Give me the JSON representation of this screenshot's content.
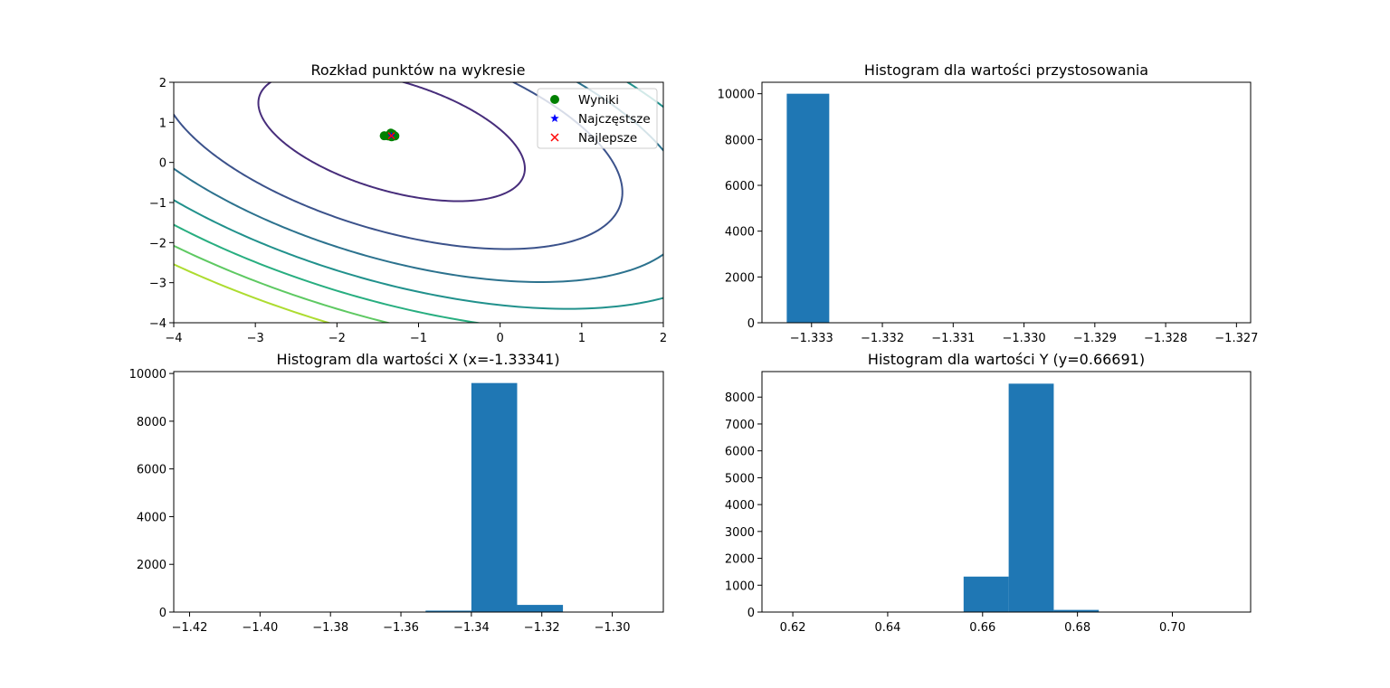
{
  "chart_data": [
    {
      "type": "contour",
      "title": "Rozkład punktów na wykresie",
      "xlim": [
        -4,
        2
      ],
      "ylim": [
        -4,
        2
      ],
      "xticks": [
        -4,
        -3,
        -2,
        -1,
        0,
        1,
        2
      ],
      "yticks": [
        -4,
        -3,
        -2,
        -1,
        0,
        1,
        2
      ],
      "xtick_labels": [
        "−4",
        "−3",
        "−2",
        "−1",
        "0",
        "1",
        "2"
      ],
      "ytick_labels": [
        "−4",
        "−3",
        "−2",
        "−1",
        "0",
        "1",
        "2"
      ],
      "contour": {
        "center": [
          -1.33,
          0.667
        ],
        "quadratic": [
          1,
          1,
          1
        ],
        "levels": [
          2,
          6,
          10,
          14,
          18,
          22,
          26
        ],
        "colors": [
          "#472d7b",
          "#3b528b",
          "#2c728e",
          "#21918c",
          "#28ae80",
          "#5ec962",
          "#addc30"
        ]
      },
      "legend": {
        "placement": "upper-right",
        "entries": [
          {
            "label": "Wyniki",
            "marker": "circle",
            "color": "#008000"
          },
          {
            "label": "Najczęstsze",
            "marker": "star",
            "color": "#0000ff"
          },
          {
            "label": "Najlepsze",
            "marker": "x",
            "color": "#ff0000"
          }
        ]
      },
      "series": [
        {
          "name": "Wyniki",
          "marker": "circle",
          "color": "#008000",
          "points": [
            [
              -1.42,
              0.665
            ],
            [
              -1.34,
              0.73
            ],
            [
              -1.31,
              0.67
            ],
            [
              -1.37,
              0.66
            ],
            [
              -1.33,
              0.64
            ],
            [
              -1.29,
              0.66
            ],
            [
              -1.35,
              0.69
            ],
            [
              -1.32,
              0.71
            ]
          ]
        },
        {
          "name": "Najczęstsze",
          "marker": "star",
          "color": "#0000ff",
          "points": [
            [
              -1.333,
              0.667
            ]
          ]
        },
        {
          "name": "Najlepsze",
          "marker": "x",
          "color": "#ff0000",
          "points": [
            [
              -1.333,
              0.667
            ]
          ]
        }
      ]
    },
    {
      "type": "bar",
      "title": "Histogram dla wartości przystosowania",
      "xlim": [
        -1.3337,
        -1.3268
      ],
      "ylim": [
        0,
        10500
      ],
      "bar_color": "#1f77b4",
      "bins": [
        {
          "x0": -1.33335,
          "x1": -1.33275,
          "count": 10000
        }
      ],
      "xticks": [
        -1.333,
        -1.332,
        -1.331,
        -1.33,
        -1.329,
        -1.328,
        -1.327
      ],
      "xtick_labels": [
        "−1.333",
        "−1.332",
        "−1.331",
        "−1.330",
        "−1.329",
        "−1.328",
        "−1.327"
      ],
      "yticks": [
        0,
        2000,
        4000,
        6000,
        8000,
        10000
      ],
      "ytick_labels": [
        "0",
        "2000",
        "4000",
        "6000",
        "8000",
        "10000"
      ]
    },
    {
      "type": "bar",
      "title": "Histogram dla wartości X (x=-1.33341)",
      "xlim": [
        -1.4245,
        -1.2855
      ],
      "ylim": [
        0,
        10080
      ],
      "bar_color": "#1f77b4",
      "bins": [
        {
          "x0": -1.418,
          "x1": -1.405,
          "count": 1
        },
        {
          "x0": -1.405,
          "x1": -1.392,
          "count": 1
        },
        {
          "x0": -1.392,
          "x1": -1.379,
          "count": 2
        },
        {
          "x0": -1.379,
          "x1": -1.366,
          "count": 3
        },
        {
          "x0": -1.366,
          "x1": -1.353,
          "count": 10
        },
        {
          "x0": -1.353,
          "x1": -1.34,
          "count": 60
        },
        {
          "x0": -1.34,
          "x1": -1.327,
          "count": 9600
        },
        {
          "x0": -1.327,
          "x1": -1.314,
          "count": 300
        },
        {
          "x0": -1.314,
          "x1": -1.301,
          "count": 5
        },
        {
          "x0": -1.301,
          "x1": -1.288,
          "count": 1
        }
      ],
      "xticks": [
        -1.42,
        -1.4,
        -1.38,
        -1.36,
        -1.34,
        -1.32,
        -1.3
      ],
      "xtick_labels": [
        "−1.42",
        "−1.40",
        "−1.38",
        "−1.36",
        "−1.34",
        "−1.32",
        "−1.30"
      ],
      "yticks": [
        0,
        2000,
        4000,
        6000,
        8000,
        10000
      ],
      "ytick_labels": [
        "0",
        "2000",
        "4000",
        "6000",
        "8000",
        "10000"
      ]
    },
    {
      "type": "bar",
      "title": "Histogram dla wartości Y (y=0.66691)",
      "xlim": [
        0.6135,
        0.7165
      ],
      "ylim": [
        0,
        8950
      ],
      "bar_color": "#1f77b4",
      "bins": [
        {
          "x0": 0.618,
          "x1": 0.6275,
          "count": 1
        },
        {
          "x0": 0.6275,
          "x1": 0.637,
          "count": 1
        },
        {
          "x0": 0.637,
          "x1": 0.6465,
          "count": 2
        },
        {
          "x0": 0.6465,
          "x1": 0.656,
          "count": 5
        },
        {
          "x0": 0.656,
          "x1": 0.6655,
          "count": 1320
        },
        {
          "x0": 0.6655,
          "x1": 0.675,
          "count": 8500
        },
        {
          "x0": 0.675,
          "x1": 0.6845,
          "count": 80
        },
        {
          "x0": 0.6845,
          "x1": 0.694,
          "count": 4
        },
        {
          "x0": 0.694,
          "x1": 0.7035,
          "count": 1
        },
        {
          "x0": 0.7035,
          "x1": 0.713,
          "count": 1
        }
      ],
      "xticks": [
        0.62,
        0.64,
        0.66,
        0.68,
        0.7
      ],
      "xtick_labels": [
        "0.62",
        "0.64",
        "0.66",
        "0.68",
        "0.70"
      ],
      "yticks": [
        0,
        1000,
        2000,
        3000,
        4000,
        5000,
        6000,
        7000,
        8000
      ],
      "ytick_labels": [
        "0",
        "1000",
        "2000",
        "3000",
        "4000",
        "5000",
        "6000",
        "7000",
        "8000"
      ]
    }
  ]
}
